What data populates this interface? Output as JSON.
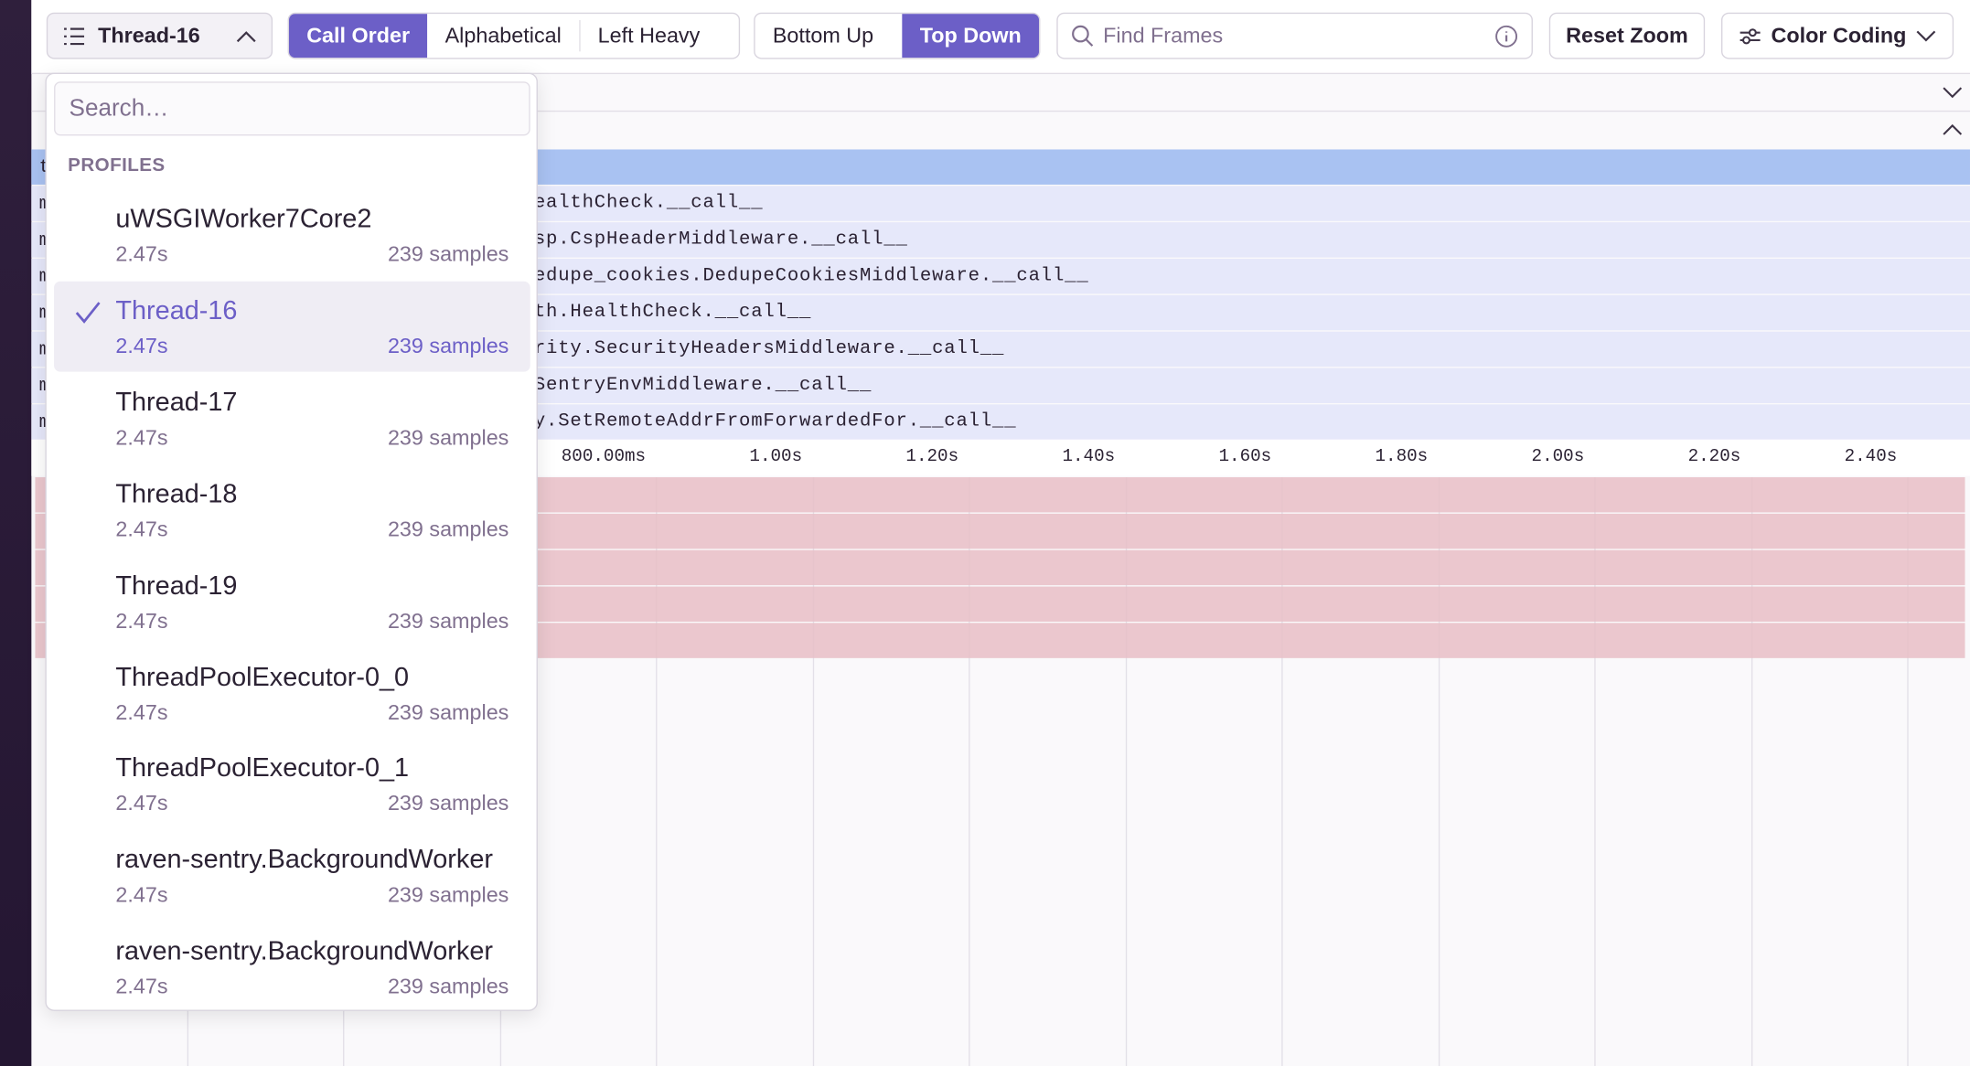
{
  "toolbar": {
    "thread_select": "Thread-16",
    "sort_buttons": [
      "Call Order",
      "Alphabetical",
      "Left Heavy"
    ],
    "direction_buttons": [
      "Bottom Up",
      "Top Down"
    ],
    "search_placeholder": "Find Frames",
    "reset_zoom": "Reset Zoom",
    "color_coding": "Color Coding"
  },
  "dropdown": {
    "search_placeholder": "Search…",
    "section": "PROFILES",
    "items": [
      {
        "name": "uWSGIWorker7Core2",
        "duration": "2.47s",
        "samples": "239 samples"
      },
      {
        "name": "Thread-16",
        "duration": "2.47s",
        "samples": "239 samples",
        "selected": true
      },
      {
        "name": "Thread-17",
        "duration": "2.47s",
        "samples": "239 samples"
      },
      {
        "name": "Thread-18",
        "duration": "2.47s",
        "samples": "239 samples"
      },
      {
        "name": "Thread-19",
        "duration": "2.47s",
        "samples": "239 samples"
      },
      {
        "name": "ThreadPoolExecutor-0_0",
        "duration": "2.47s",
        "samples": "239 samples"
      },
      {
        "name": "ThreadPoolExecutor-0_1",
        "duration": "2.47s",
        "samples": "239 samples"
      },
      {
        "name": "raven-sentry.BackgroundWorker",
        "duration": "2.47s",
        "samples": "239 samples"
      },
      {
        "name": "raven-sentry.BackgroundWorker",
        "duration": "2.47s",
        "samples": "239 samples"
      }
    ]
  },
  "flamegraph": {
    "left_marks": [
      "t",
      "m",
      "m",
      "m",
      "m",
      "m",
      "m",
      "m"
    ],
    "frames": [
      "ealthCheck.__call__",
      "sp.CspHeaderMiddleware.__call__",
      "edupe_cookies.DedupeCookiesMiddleware.__call__",
      "th.HealthCheck.__call__",
      "rity.SecurityHeadersMiddleware.__call__",
      "SentryEnvMiddleware.__call__",
      "y.SetRemoteAddrFromForwardedFor.__call__"
    ],
    "timeline": [
      "800.00ms",
      "1.00s",
      "1.20s",
      "1.40s",
      "1.60s",
      "1.80s",
      "2.00s",
      "2.20s",
      "2.40s"
    ]
  }
}
